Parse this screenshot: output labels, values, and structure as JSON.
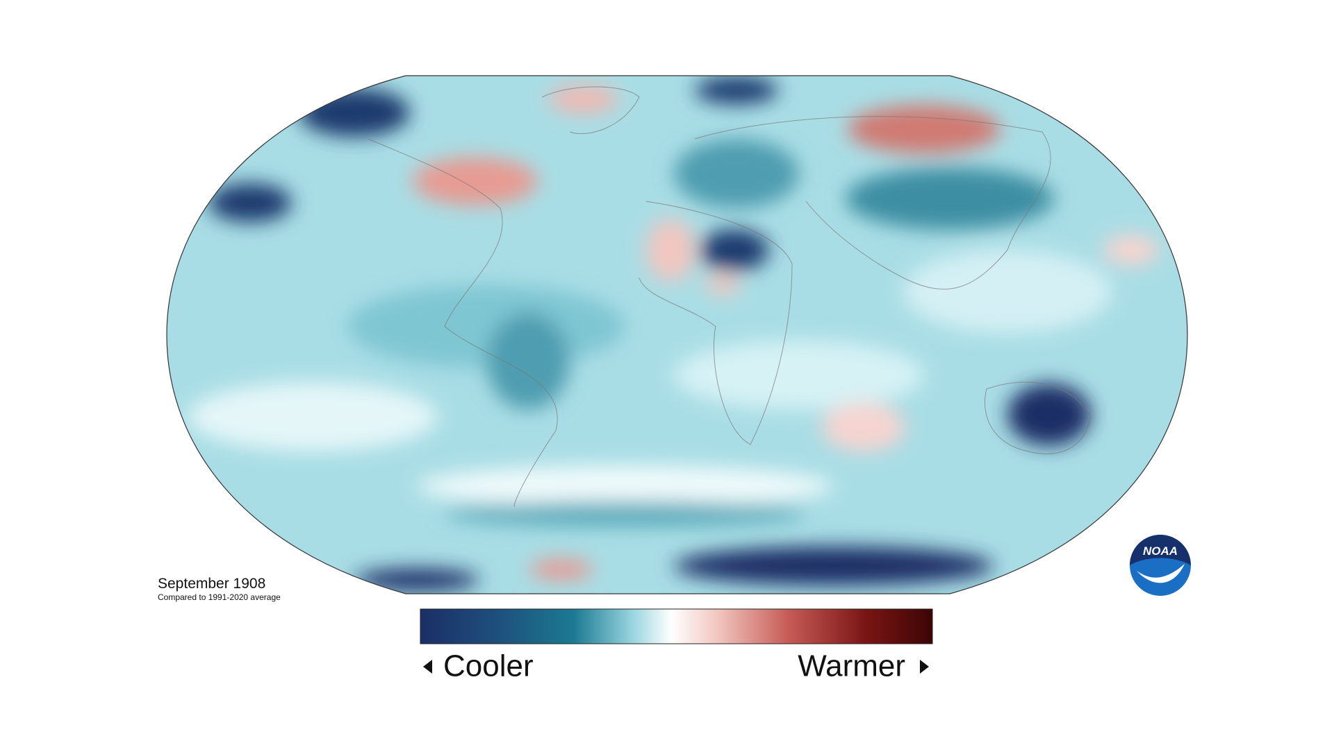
{
  "caption": {
    "title": "September 1908",
    "subtitle": "Compared to 1991-2020 average"
  },
  "legend": {
    "low": "Cooler",
    "high": "Warmer"
  },
  "logo": {
    "text": "NOAA"
  }
}
